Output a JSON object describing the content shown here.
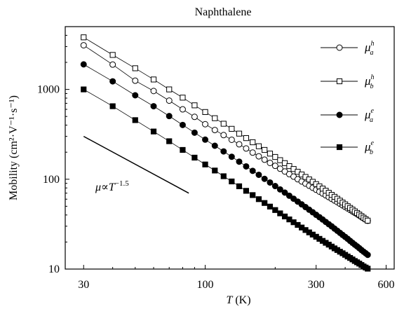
{
  "chart_data": {
    "type": "scatter",
    "title": "Naphthalene",
    "ylabel": "Mobility (cm²·V⁻¹·s⁻¹)",
    "xlabel_italic": "T",
    "xlabel_unit": " (K)",
    "x_scale": "log",
    "y_scale": "log",
    "xlim": [
      25,
      650
    ],
    "ylim": [
      10,
      5000
    ],
    "x_ticks": [
      30,
      100,
      300,
      600
    ],
    "x_tick_labels": [
      "30",
      "100",
      "300",
      "600"
    ],
    "y_ticks": [
      10,
      100,
      1000
    ],
    "y_tick_labels": [
      "10",
      "100",
      "1000"
    ],
    "grid": false,
    "legend_position": "top-right",
    "series": [
      {
        "name": "μ_a^h",
        "sym": "μ",
        "sub": "a",
        "sup": "h",
        "marker": "circle-open",
        "x": [
          30,
          40,
          50,
          60,
          70,
          80,
          90,
          100,
          110,
          120,
          130,
          140,
          150,
          160,
          170,
          180,
          190,
          200,
          210,
          220,
          230,
          240,
          250,
          260,
          270,
          280,
          290,
          300,
          310,
          320,
          330,
          340,
          350,
          360,
          370,
          380,
          390,
          400,
          410,
          420,
          430,
          440,
          450,
          460,
          470,
          480,
          490,
          500
        ],
        "y": [
          3100,
          1890,
          1250,
          960,
          750,
          600,
          495,
          410,
          353,
          310,
          275,
          245,
          220,
          198,
          180,
          165,
          152,
          141,
          131,
          122,
          114,
          107,
          100,
          94.5,
          89.4,
          84.7,
          80.4,
          76.4,
          72.8,
          69.4,
          66.2,
          63.3,
          60.5,
          58.0,
          55.6,
          53.3,
          51.2,
          49.2,
          47.3,
          45.6,
          43.9,
          42.3,
          40.9,
          39.5,
          38.1,
          36.9,
          35.7,
          34.5
        ]
      },
      {
        "name": "μ_b^h",
        "sym": "μ",
        "sub": "b",
        "sup": "h",
        "marker": "square-open",
        "x": [
          30,
          40,
          50,
          60,
          70,
          80,
          90,
          100,
          110,
          120,
          130,
          140,
          150,
          160,
          170,
          180,
          190,
          200,
          210,
          220,
          230,
          240,
          250,
          260,
          270,
          280,
          290,
          300,
          310,
          320,
          330,
          340,
          350,
          360,
          370,
          380,
          390,
          400,
          410,
          420,
          430,
          440,
          450,
          460,
          470,
          480,
          490,
          500
        ],
        "y": [
          3800,
          2420,
          1720,
          1290,
          1000,
          810,
          665,
          560,
          478,
          415,
          364,
          322,
          287,
          258,
          233,
          212,
          193,
          177,
          163,
          151,
          140,
          130,
          121,
          113,
          106,
          99.5,
          93.6,
          88.2,
          83.3,
          78.7,
          74.5,
          70.6,
          67.0,
          63.7,
          60.6,
          57.7,
          55.0,
          52.5,
          50.1,
          47.9,
          45.9,
          43.9,
          42.1,
          40.4,
          38.8,
          37.3,
          35.9,
          34.6
        ]
      },
      {
        "name": "μ_a^e",
        "sym": "μ",
        "sub": "a",
        "sup": "e",
        "marker": "circle-filled",
        "x": [
          30,
          40,
          50,
          60,
          70,
          80,
          90,
          100,
          110,
          120,
          130,
          140,
          150,
          160,
          170,
          180,
          190,
          200,
          210,
          220,
          230,
          240,
          250,
          260,
          270,
          280,
          290,
          300,
          310,
          320,
          330,
          340,
          350,
          360,
          370,
          380,
          390,
          400,
          410,
          420,
          430,
          440,
          450,
          460,
          470,
          480,
          490,
          500
        ],
        "y": [
          1900,
          1230,
          860,
          650,
          505,
          402,
          330,
          276,
          236,
          204,
          178,
          157,
          139,
          124,
          112,
          101,
          92.0,
          84.0,
          77.0,
          71.0,
          65.5,
          60.7,
          56.4,
          52.5,
          49.0,
          45.8,
          42.9,
          40.2,
          37.8,
          35.6,
          33.5,
          31.6,
          29.9,
          28.2,
          26.7,
          25.3,
          24.0,
          22.8,
          21.7,
          20.6,
          19.6,
          18.7,
          17.9,
          17.1,
          16.3,
          15.6,
          15.0,
          14.4
        ]
      },
      {
        "name": "μ_b^e",
        "sym": "μ",
        "sub": "b",
        "sup": "e",
        "marker": "square-filled",
        "x": [
          30,
          40,
          50,
          60,
          70,
          80,
          90,
          100,
          110,
          120,
          130,
          140,
          150,
          160,
          170,
          180,
          190,
          200,
          210,
          220,
          230,
          240,
          250,
          260,
          270,
          280,
          290,
          300,
          310,
          320,
          330,
          340,
          350,
          360,
          370,
          380,
          390,
          400,
          410,
          420,
          430,
          440,
          450,
          460,
          470,
          480,
          490,
          500
        ],
        "y": [
          1000,
          650,
          455,
          340,
          265,
          212,
          174,
          146,
          125,
          108,
          94.5,
          83.5,
          74.3,
          66.6,
          60.0,
          54.4,
          49.6,
          45.4,
          41.7,
          38.5,
          35.7,
          33.2,
          31.0,
          29.0,
          27.2,
          25.6,
          24.2,
          22.9,
          21.7,
          20.6,
          19.6,
          18.7,
          17.8,
          17.0,
          16.3,
          15.6,
          15.0,
          14.4,
          13.8,
          13.3,
          12.8,
          12.3,
          11.9,
          11.5,
          11.1,
          10.7,
          10.4,
          10.1
        ]
      }
    ],
    "annotation": {
      "lhs": "μ∝",
      "var": "T",
      "exp": "−1.5",
      "line_from": [
        30,
        300
      ],
      "line_to": [
        85,
        70
      ]
    }
  }
}
